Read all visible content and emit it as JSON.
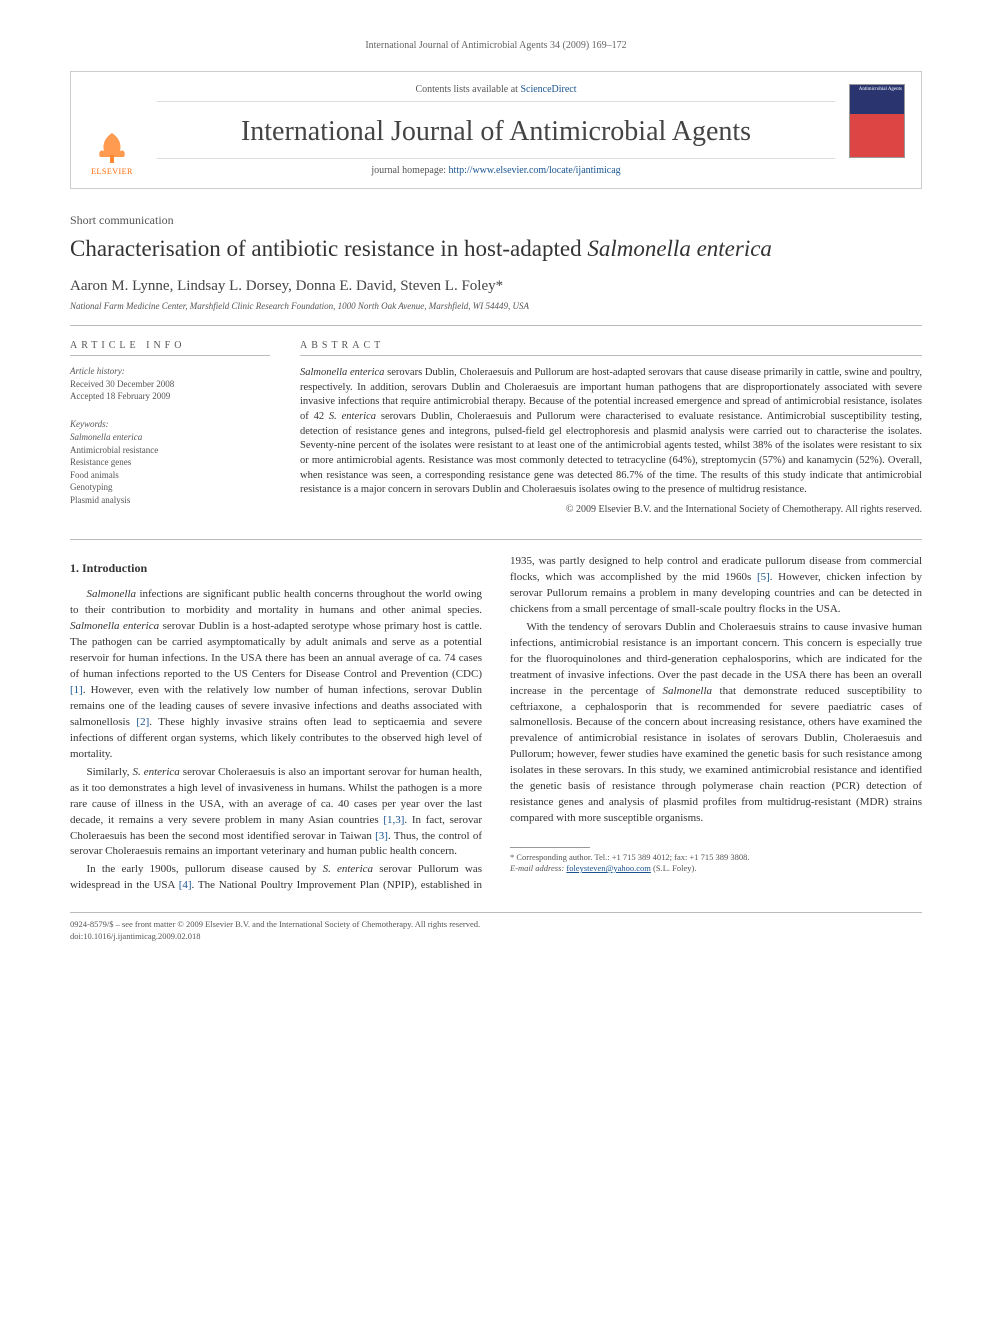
{
  "running_header": "International Journal of Antimicrobial Agents 34 (2009) 169–172",
  "masthead": {
    "contents_text": "Contents lists available at ",
    "contents_link": "ScienceDirect",
    "journal_title": "International Journal of Antimicrobial Agents",
    "homepage_label": "journal homepage: ",
    "homepage_url": "http://www.elsevier.com/locate/ijantimicag",
    "publisher_logo_text": "ELSEVIER",
    "cover_label": "Antimicrobial Agents"
  },
  "article_type": "Short communication",
  "title_plain": "Characterisation of antibiotic resistance in host-adapted ",
  "title_species": "Salmonella enterica",
  "authors": "Aaron M. Lynne, Lindsay L. Dorsey, Donna E. David, Steven L. Foley*",
  "affiliation": "National Farm Medicine Center, Marshfield Clinic Research Foundation, 1000 North Oak Avenue, Marshfield, WI 54449, USA",
  "article_info": {
    "heading": "ARTICLE INFO",
    "history_label": "Article history:",
    "received": "Received 30 December 2008",
    "accepted": "Accepted 18 February 2009",
    "keywords_label": "Keywords:",
    "keywords": [
      "Salmonella enterica",
      "Antimicrobial resistance",
      "Resistance genes",
      "Food animals",
      "Genotyping",
      "Plasmid analysis"
    ]
  },
  "abstract": {
    "heading": "ABSTRACT",
    "text_html": "<span class=\"species\">Salmonella enterica</span> serovars Dublin, Choleraesuis and Pullorum are host-adapted serovars that cause disease primarily in cattle, swine and poultry, respectively. In addition, serovars Dublin and Choleraesuis are important human pathogens that are disproportionately associated with severe invasive infections that require antimicrobial therapy. Because of the potential increased emergence and spread of antimicrobial resistance, isolates of 42 <span class=\"species\">S. enterica</span> serovars Dublin, Choleraesuis and Pullorum were characterised to evaluate resistance. Antimicrobial susceptibility testing, detection of resistance genes and integrons, pulsed-field gel electrophoresis and plasmid analysis were carried out to characterise the isolates. Seventy-nine percent of the isolates were resistant to at least one of the antimicrobial agents tested, whilst 38% of the isolates were resistant to six or more antimicrobial agents. Resistance was most commonly detected to tetracycline (64%), streptomycin (57%) and kanamycin (52%). Overall, when resistance was seen, a corresponding resistance gene was detected 86.7% of the time. The results of this study indicate that antimicrobial resistance is a major concern in serovars Dublin and Choleraesuis isolates owing to the presence of multidrug resistance.",
    "copyright": "© 2009 Elsevier B.V. and the International Society of Chemotherapy. All rights reserved."
  },
  "sections": {
    "intro_heading": "1. Introduction",
    "p1": "<span class=\"species\">Salmonella</span> infections are significant public health concerns throughout the world owing to their contribution to morbidity and mortality in humans and other animal species. <span class=\"species\">Salmonella enterica</span> serovar Dublin is a host-adapted serotype whose primary host is cattle. The pathogen can be carried asymptomatically by adult animals and serve as a potential reservoir for human infections. In the USA there has been an annual average of ca. 74 cases of human infections reported to the US Centers for Disease Control and Prevention (CDC) <span class=\"ref-link\">[1]</span>. However, even with the relatively low number of human infections, serovar Dublin remains one of the leading causes of severe invasive infections and deaths associated with salmonellosis <span class=\"ref-link\">[2]</span>. These highly invasive strains often lead to septicaemia and severe infections of different organ systems, which likely contributes to the observed high level of mortality.",
    "p2": "Similarly, <span class=\"species\">S. enterica</span> serovar Choleraesuis is also an important serovar for human health, as it too demonstrates a high level of invasiveness in humans. Whilst the pathogen is a more rare cause of illness in the USA, with an average of ca. 40 cases per year over the last decade, it remains a very severe problem in many Asian countries <span class=\"ref-link\">[1,3]</span>. In fact, serovar Choleraesuis has been the second most identified serovar in Taiwan <span class=\"ref-link\">[3]</span>. Thus, the control of serovar Choleraesuis remains an important veterinary and human public health concern.",
    "p3": "In the early 1900s, pullorum disease caused by <span class=\"species\">S. enterica</span> serovar Pullorum was widespread in the USA <span class=\"ref-link\">[4]</span>. The National Poultry Improvement Plan (NPIP), established in 1935, was partly designed to help control and eradicate pullorum disease from commercial flocks, which was accomplished by the mid 1960s <span class=\"ref-link\">[5]</span>. However, chicken infection by serovar Pullorum remains a problem in many developing countries and can be detected in chickens from a small percentage of small-scale poultry flocks in the USA.",
    "p4": "With the tendency of serovars Dublin and Choleraesuis strains to cause invasive human infections, antimicrobial resistance is an important concern. This concern is especially true for the fluoroquinolones and third-generation cephalosporins, which are indicated for the treatment of invasive infections. Over the past decade in the USA there has been an overall increase in the percentage of <span class=\"species\">Salmonella</span> that demonstrate reduced susceptibility to ceftriaxone, a cephalosporin that is recommended for severe paediatric cases of salmonellosis. Because of the concern about increasing resistance, others have examined the prevalence of antimicrobial resistance in isolates of serovars Dublin, Choleraesuis and Pullorum; however, fewer studies have examined the genetic basis for such resistance among isolates in these serovars. In this study, we examined antimicrobial resistance and identified the genetic basis of resistance through polymerase chain reaction (PCR) detection of resistance genes and analysis of plasmid profiles from multidrug-resistant (MDR) strains compared with more susceptible organisms."
  },
  "footnote": {
    "corr": "* Corresponding author. Tel.: +1 715 389 4012; fax: +1 715 389 3808.",
    "email_label": "E-mail address: ",
    "email": "foleysteven@yahoo.com",
    "email_name": " (S.L. Foley)."
  },
  "bottom": {
    "line1": "0924-8579/$ – see front matter © 2009 Elsevier B.V. and the International Society of Chemotherapy. All rights reserved.",
    "line2": "doi:10.1016/j.ijantimicag.2009.02.018"
  },
  "colors": {
    "link": "#1a5490",
    "elsevier_orange": "#ff6600",
    "rule": "#bbbbbb"
  }
}
